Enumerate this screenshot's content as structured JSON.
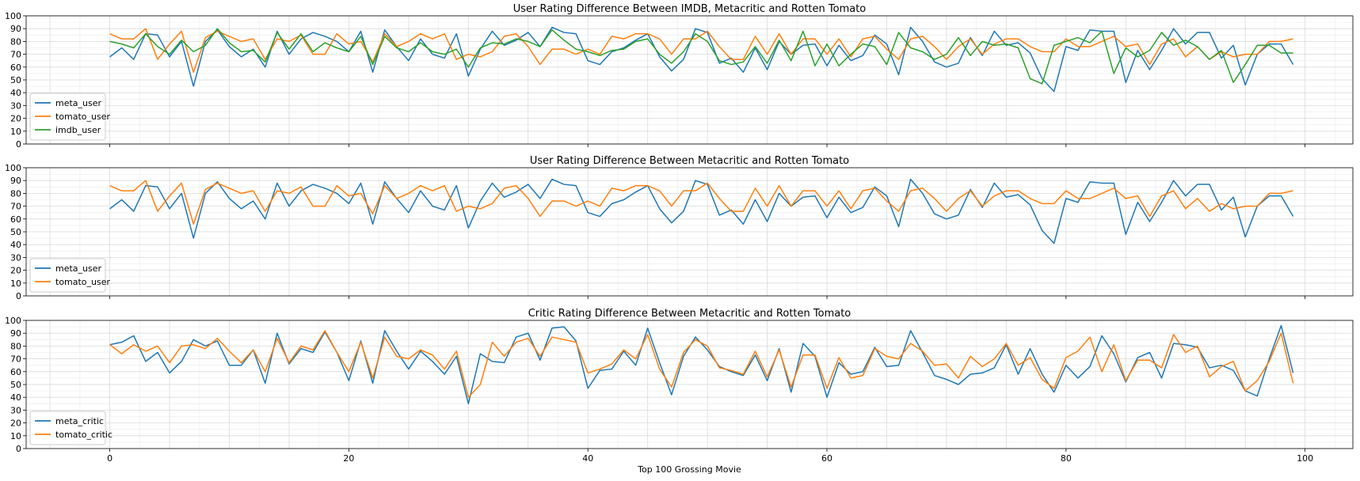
{
  "figure": {
    "xlabel": "Top 100 Grossing Movie",
    "x_ticks": [
      0,
      20,
      40,
      60,
      80,
      100
    ],
    "xlim": [
      -7,
      104
    ],
    "grid": true,
    "shared_x": true,
    "colors": {
      "blue": "#1f77b4",
      "orange": "#ff7f0e",
      "green": "#2ca02c"
    }
  },
  "chart_data": [
    {
      "type": "line",
      "title": "User Rating Difference Between IMDB, Metacritic and Rotten Tomato",
      "xlabel": "",
      "ylabel": "",
      "ylim": [
        0,
        100
      ],
      "y_ticks": [
        0,
        10,
        20,
        30,
        40,
        50,
        60,
        70,
        80,
        90,
        100
      ],
      "legend": "lower-left",
      "series": [
        {
          "name": "meta_user",
          "color": "#1f77b4",
          "values": [
            68,
            75,
            66,
            86,
            85,
            68,
            80,
            45,
            80,
            89,
            76,
            68,
            74,
            60,
            88,
            70,
            82,
            87,
            84,
            80,
            72,
            88,
            56,
            89,
            76,
            65,
            82,
            70,
            67,
            86,
            53,
            74,
            88,
            77,
            81,
            87,
            76,
            91,
            87,
            86,
            65,
            62,
            72,
            75,
            81,
            86,
            68,
            57,
            66,
            90,
            87,
            63,
            67,
            56,
            75,
            58,
            80,
            70,
            77,
            78,
            61,
            77,
            65,
            69,
            85,
            78,
            54,
            91,
            80,
            64,
            60,
            63,
            83,
            69,
            88,
            77,
            79,
            71,
            51,
            41,
            76,
            73,
            89,
            88,
            88,
            48,
            73,
            58,
            73,
            90,
            78,
            87,
            87,
            67,
            77,
            46,
            70,
            78,
            78,
            62
          ]
        },
        {
          "name": "tomato_user",
          "color": "#ff7f0e",
          "values": [
            86,
            82,
            82,
            90,
            66,
            78,
            88,
            56,
            83,
            88,
            84,
            80,
            82,
            66,
            82,
            80,
            85,
            70,
            70,
            86,
            78,
            80,
            64,
            86,
            76,
            80,
            86,
            82,
            86,
            66,
            70,
            68,
            72,
            84,
            86,
            76,
            62,
            74,
            74,
            70,
            74,
            70,
            84,
            82,
            86,
            86,
            82,
            70,
            82,
            82,
            88,
            76,
            66,
            66,
            84,
            70,
            86,
            70,
            82,
            82,
            70,
            82,
            68,
            82,
            84,
            74,
            66,
            82,
            84,
            76,
            66,
            76,
            82,
            70,
            78,
            82,
            82,
            76,
            72,
            72,
            82,
            76,
            76,
            80,
            84,
            76,
            78,
            62,
            78,
            82,
            68,
            76,
            66,
            72,
            68,
            70,
            70,
            80,
            80,
            82
          ]
        },
        {
          "name": "imdb_user",
          "color": "#2ca02c",
          "values": [
            80,
            78,
            75,
            86,
            76,
            70,
            81,
            72,
            77,
            90,
            79,
            72,
            73,
            64,
            87,
            74,
            86,
            72,
            79,
            75,
            72,
            84,
            62,
            84,
            75,
            72,
            79,
            72,
            70,
            74,
            60,
            75,
            79,
            78,
            82,
            80,
            76,
            89,
            81,
            74,
            72,
            69,
            73,
            74,
            80,
            82,
            70,
            63,
            72,
            86,
            80,
            65,
            62,
            64,
            76,
            63,
            81,
            65,
            88,
            61,
            78,
            61,
            70,
            78,
            76,
            62,
            87,
            75,
            72,
            66,
            70,
            83,
            69,
            80,
            77,
            78,
            75,
            51,
            47,
            77,
            80,
            83,
            79,
            88,
            55,
            75,
            68,
            73,
            87,
            77,
            81,
            76,
            66,
            73,
            48,
            62,
            77,
            77,
            71,
            71
          ]
        }
      ]
    },
    {
      "type": "line",
      "title": "User Rating Difference Between Metacritic and Rotten Tomato",
      "xlabel": "",
      "ylabel": "",
      "ylim": [
        0,
        100
      ],
      "y_ticks": [
        0,
        10,
        20,
        30,
        40,
        50,
        60,
        70,
        80,
        90,
        100
      ],
      "legend": "lower-left",
      "series": [
        {
          "name": "meta_user",
          "color": "#1f77b4",
          "values": [
            68,
            75,
            66,
            86,
            85,
            68,
            80,
            45,
            80,
            89,
            76,
            68,
            74,
            60,
            88,
            70,
            82,
            87,
            84,
            80,
            72,
            88,
            56,
            89,
            76,
            65,
            82,
            70,
            67,
            86,
            53,
            74,
            88,
            77,
            81,
            87,
            76,
            91,
            87,
            86,
            65,
            62,
            72,
            75,
            81,
            86,
            68,
            57,
            66,
            90,
            87,
            63,
            67,
            56,
            75,
            58,
            80,
            70,
            77,
            78,
            61,
            77,
            65,
            69,
            85,
            78,
            54,
            91,
            80,
            64,
            60,
            63,
            83,
            69,
            88,
            77,
            79,
            71,
            51,
            41,
            76,
            73,
            89,
            88,
            88,
            48,
            73,
            58,
            73,
            90,
            78,
            87,
            87,
            67,
            77,
            46,
            70,
            78,
            78,
            62
          ]
        },
        {
          "name": "tomato_user",
          "color": "#ff7f0e",
          "values": [
            86,
            82,
            82,
            90,
            66,
            78,
            88,
            56,
            83,
            88,
            84,
            80,
            82,
            66,
            82,
            80,
            85,
            70,
            70,
            86,
            78,
            80,
            64,
            86,
            76,
            80,
            86,
            82,
            86,
            66,
            70,
            68,
            72,
            84,
            86,
            76,
            62,
            74,
            74,
            70,
            74,
            70,
            84,
            82,
            86,
            86,
            82,
            70,
            82,
            82,
            88,
            76,
            66,
            66,
            84,
            70,
            86,
            70,
            82,
            82,
            70,
            82,
            68,
            82,
            84,
            74,
            66,
            82,
            84,
            76,
            66,
            76,
            82,
            70,
            78,
            82,
            82,
            76,
            72,
            72,
            82,
            76,
            76,
            80,
            84,
            76,
            78,
            62,
            78,
            82,
            68,
            76,
            66,
            72,
            68,
            70,
            70,
            80,
            80,
            82
          ]
        }
      ]
    },
    {
      "type": "line",
      "title": "Critic Rating Difference Between Metacritic and Rotten Tomato",
      "xlabel": "Top 100 Grossing Movie",
      "ylabel": "",
      "ylim": [
        0,
        100
      ],
      "y_ticks": [
        0,
        10,
        20,
        30,
        40,
        50,
        60,
        70,
        80,
        90,
        100
      ],
      "legend": "lower-left",
      "series": [
        {
          "name": "meta_critic",
          "color": "#1f77b4",
          "values": [
            81,
            83,
            88,
            68,
            75,
            59,
            68,
            85,
            80,
            84,
            65,
            65,
            77,
            51,
            90,
            66,
            78,
            75,
            91,
            75,
            53,
            84,
            51,
            92,
            76,
            62,
            76,
            68,
            58,
            72,
            35,
            74,
            68,
            67,
            87,
            90,
            69,
            94,
            95,
            84,
            47,
            61,
            62,
            76,
            65,
            94,
            67,
            42,
            72,
            87,
            77,
            64,
            60,
            57,
            73,
            53,
            78,
            44,
            82,
            72,
            40,
            67,
            58,
            60,
            79,
            64,
            65,
            92,
            75,
            57,
            54,
            50,
            58,
            59,
            63,
            81,
            58,
            78,
            58,
            44,
            65,
            55,
            64,
            88,
            74,
            52,
            71,
            75,
            55,
            82,
            81,
            79,
            63,
            65,
            61,
            45,
            41,
            70,
            96,
            59
          ]
        },
        {
          "name": "tomato_critic",
          "color": "#ff7f0e",
          "values": [
            81,
            74,
            81,
            76,
            80,
            67,
            80,
            81,
            78,
            86,
            76,
            67,
            77,
            60,
            86,
            67,
            80,
            77,
            92,
            75,
            60,
            83,
            55,
            87,
            72,
            70,
            77,
            73,
            62,
            76,
            40,
            50,
            83,
            72,
            83,
            86,
            72,
            87,
            85,
            83,
            59,
            62,
            66,
            77,
            70,
            89,
            62,
            48,
            75,
            85,
            80,
            63,
            61,
            58,
            76,
            56,
            77,
            48,
            73,
            73,
            47,
            71,
            55,
            57,
            78,
            72,
            70,
            82,
            76,
            65,
            66,
            55,
            72,
            64,
            70,
            82,
            65,
            71,
            54,
            47,
            71,
            76,
            87,
            60,
            81,
            53,
            69,
            69,
            63,
            89,
            75,
            80,
            56,
            64,
            68,
            45,
            53,
            68,
            90,
            51
          ]
        }
      ]
    }
  ]
}
